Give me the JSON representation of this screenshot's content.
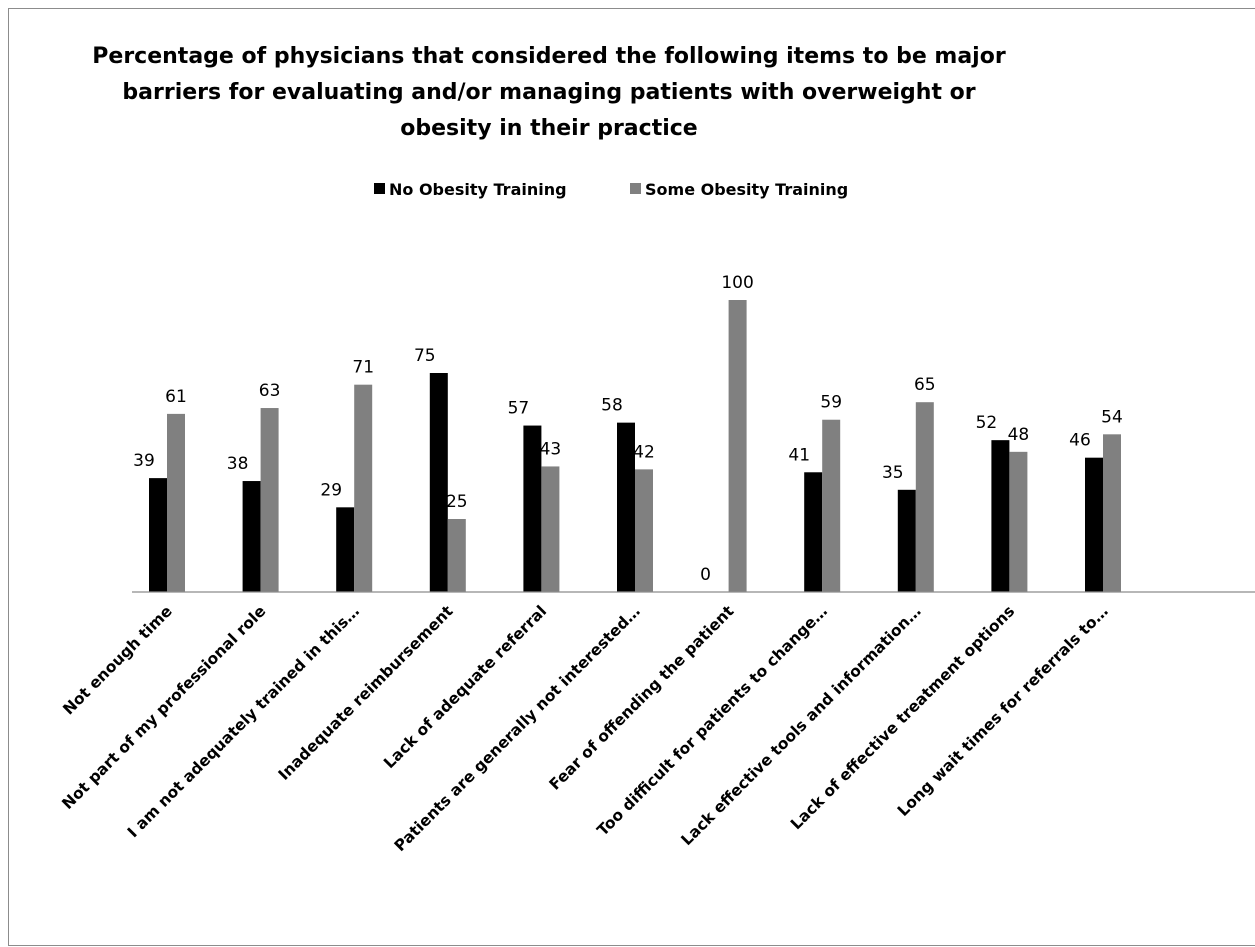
{
  "chart_data": {
    "type": "bar",
    "title_lines": [
      "Percentage of physicians that considered the following items to be major",
      "barriers for evaluating and/or managing patients with overweight or",
      "obesity in their practice"
    ],
    "xlabel": "",
    "ylabel": "",
    "ylim": [
      0,
      100
    ],
    "grid": false,
    "legend_position": "top",
    "categories": [
      "Not enough time",
      "Not part of my professional role",
      "I am not adequately trained in this…",
      "Inadequate reimbursement",
      "Lack of adequate referral",
      "Patients are generally not interested…",
      "Fear of offending the patient",
      "Too difficult for patients to change…",
      "Lack effective tools and information…",
      "Lack of effective treatment options",
      "Long wait times for referrals to…"
    ],
    "series": [
      {
        "name": "No Obesity Training",
        "color": "#000000",
        "values": [
          39,
          38,
          29,
          75,
          57,
          58,
          0,
          41,
          35,
          52,
          46
        ]
      },
      {
        "name": "Some Obesity Training",
        "color": "#808080",
        "values": [
          61,
          63,
          71,
          25,
          43,
          42,
          100,
          59,
          65,
          48,
          54
        ]
      }
    ]
  }
}
